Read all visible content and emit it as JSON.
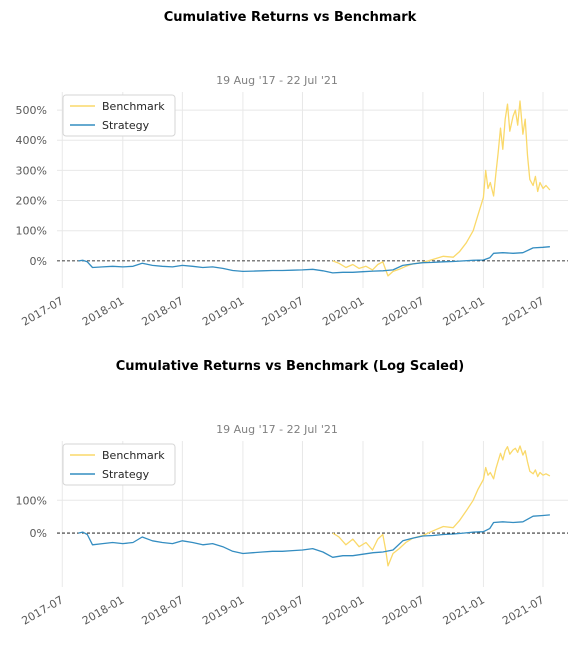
{
  "colors": {
    "benchmark": "#fad96a",
    "strategy": "#348dc1",
    "grid": "#e8e8e8",
    "zero_line": "#000000"
  },
  "chart_data": [
    {
      "type": "line",
      "title": "Cumulative Returns vs Benchmark",
      "subtitle": "19 Aug '17 - 22 Jul '21",
      "x_ticks": [
        "2017-07",
        "2018-01",
        "2018-07",
        "2019-01",
        "2019-07",
        "2020-01",
        "2020-07",
        "2021-01",
        "2021-07"
      ],
      "y_ticks": [
        "0%",
        "100%",
        "200%",
        "300%",
        "400%",
        "500%"
      ],
      "y_tick_values": [
        0,
        100,
        200,
        300,
        400,
        500
      ],
      "ylim": [
        -90,
        560
      ],
      "xlim": [
        "2017-06-15",
        "2021-09-15"
      ],
      "y_scale": "linear",
      "grid": true,
      "legend_position": "top-left",
      "series": [
        {
          "name": "Benchmark",
          "points": [
            [
              "2019-10-01",
              0
            ],
            [
              "2019-10-20",
              -8
            ],
            [
              "2019-11-10",
              -22
            ],
            [
              "2019-12-01",
              -12
            ],
            [
              "2019-12-20",
              -25
            ],
            [
              "2020-01-10",
              -18
            ],
            [
              "2020-01-30",
              -30
            ],
            [
              "2020-02-15",
              -12
            ],
            [
              "2020-03-01",
              -3
            ],
            [
              "2020-03-10",
              -30
            ],
            [
              "2020-03-17",
              -50
            ],
            [
              "2020-04-01",
              -35
            ],
            [
              "2020-04-20",
              -28
            ],
            [
              "2020-05-10",
              -18
            ],
            [
              "2020-06-01",
              -10
            ],
            [
              "2020-07-01",
              -5
            ],
            [
              "2020-08-01",
              5
            ],
            [
              "2020-09-01",
              15
            ],
            [
              "2020-10-01",
              12
            ],
            [
              "2020-10-20",
              30
            ],
            [
              "2020-11-10",
              60
            ],
            [
              "2020-12-01",
              100
            ],
            [
              "2020-12-15",
              150
            ],
            [
              "2021-01-01",
              210
            ],
            [
              "2021-01-08",
              300
            ],
            [
              "2021-01-15",
              240
            ],
            [
              "2021-01-22",
              260
            ],
            [
              "2021-02-01",
              215
            ],
            [
              "2021-02-08",
              290
            ],
            [
              "2021-02-15",
              360
            ],
            [
              "2021-02-22",
              440
            ],
            [
              "2021-03-01",
              370
            ],
            [
              "2021-03-08",
              470
            ],
            [
              "2021-03-15",
              520
            ],
            [
              "2021-03-22",
              430
            ],
            [
              "2021-04-01",
              480
            ],
            [
              "2021-04-08",
              500
            ],
            [
              "2021-04-15",
              450
            ],
            [
              "2021-04-22",
              530
            ],
            [
              "2021-05-01",
              420
            ],
            [
              "2021-05-08",
              470
            ],
            [
              "2021-05-15",
              350
            ],
            [
              "2021-05-22",
              270
            ],
            [
              "2021-06-01",
              250
            ],
            [
              "2021-06-08",
              280
            ],
            [
              "2021-06-15",
              230
            ],
            [
              "2021-06-22",
              260
            ],
            [
              "2021-07-01",
              240
            ],
            [
              "2021-07-10",
              250
            ],
            [
              "2021-07-22",
              235
            ]
          ]
        },
        {
          "name": "Strategy",
          "points": [
            [
              "2017-08-19",
              0
            ],
            [
              "2017-09-01",
              2
            ],
            [
              "2017-09-15",
              -3
            ],
            [
              "2017-10-01",
              -22
            ],
            [
              "2017-11-01",
              -20
            ],
            [
              "2017-12-01",
              -18
            ],
            [
              "2018-01-01",
              -20
            ],
            [
              "2018-02-01",
              -18
            ],
            [
              "2018-03-01",
              -8
            ],
            [
              "2018-04-01",
              -15
            ],
            [
              "2018-05-01",
              -18
            ],
            [
              "2018-06-01",
              -20
            ],
            [
              "2018-07-01",
              -15
            ],
            [
              "2018-08-01",
              -18
            ],
            [
              "2018-09-01",
              -22
            ],
            [
              "2018-10-01",
              -20
            ],
            [
              "2018-11-01",
              -25
            ],
            [
              "2018-12-01",
              -32
            ],
            [
              "2019-01-01",
              -35
            ],
            [
              "2019-02-01",
              -34
            ],
            [
              "2019-03-01",
              -33
            ],
            [
              "2019-04-01",
              -32
            ],
            [
              "2019-05-01",
              -32
            ],
            [
              "2019-06-01",
              -31
            ],
            [
              "2019-07-01",
              -30
            ],
            [
              "2019-08-01",
              -28
            ],
            [
              "2019-09-01",
              -33
            ],
            [
              "2019-10-01",
              -40
            ],
            [
              "2019-11-01",
              -38
            ],
            [
              "2019-12-01",
              -38
            ],
            [
              "2020-01-01",
              -36
            ],
            [
              "2020-02-01",
              -34
            ],
            [
              "2020-03-01",
              -33
            ],
            [
              "2020-04-01",
              -30
            ],
            [
              "2020-05-01",
              -15
            ],
            [
              "2020-06-01",
              -10
            ],
            [
              "2020-07-01",
              -6
            ],
            [
              "2020-08-01",
              -5
            ],
            [
              "2020-09-01",
              -3
            ],
            [
              "2020-10-01",
              -2
            ],
            [
              "2020-11-01",
              0
            ],
            [
              "2020-12-01",
              2
            ],
            [
              "2021-01-01",
              3
            ],
            [
              "2021-01-20",
              10
            ],
            [
              "2021-02-01",
              25
            ],
            [
              "2021-03-01",
              27
            ],
            [
              "2021-04-01",
              25
            ],
            [
              "2021-05-01",
              27
            ],
            [
              "2021-06-01",
              43
            ],
            [
              "2021-07-01",
              45
            ],
            [
              "2021-07-22",
              47
            ]
          ]
        }
      ]
    },
    {
      "type": "line",
      "title": "Cumulative Returns vs Benchmark (Log Scaled)",
      "subtitle": "19 Aug '17 - 22 Jul '21",
      "x_ticks": [
        "2017-07",
        "2018-01",
        "2018-07",
        "2019-01",
        "2019-07",
        "2020-01",
        "2020-07",
        "2021-01",
        "2021-07"
      ],
      "y_ticks": [
        "0%",
        "100%"
      ],
      "y_tick_values": [
        0,
        100
      ],
      "ylim": [
        -68,
        600
      ],
      "xlim": [
        "2017-06-15",
        "2021-09-15"
      ],
      "y_scale": "log",
      "grid": true,
      "legend_position": "top-left",
      "series": [
        {
          "name": "Benchmark",
          "points": [
            [
              "2019-10-01",
              0
            ],
            [
              "2019-10-20",
              -8
            ],
            [
              "2019-11-10",
              -22
            ],
            [
              "2019-12-01",
              -12
            ],
            [
              "2019-12-20",
              -25
            ],
            [
              "2020-01-10",
              -18
            ],
            [
              "2020-01-30",
              -30
            ],
            [
              "2020-02-15",
              -12
            ],
            [
              "2020-03-01",
              -3
            ],
            [
              "2020-03-10",
              -30
            ],
            [
              "2020-03-17",
              -50
            ],
            [
              "2020-04-01",
              -35
            ],
            [
              "2020-04-20",
              -28
            ],
            [
              "2020-05-10",
              -18
            ],
            [
              "2020-06-01",
              -10
            ],
            [
              "2020-07-01",
              -5
            ],
            [
              "2020-08-01",
              5
            ],
            [
              "2020-09-01",
              15
            ],
            [
              "2020-10-01",
              12
            ],
            [
              "2020-10-20",
              30
            ],
            [
              "2020-11-10",
              60
            ],
            [
              "2020-12-01",
              100
            ],
            [
              "2020-12-15",
              150
            ],
            [
              "2021-01-01",
              210
            ],
            [
              "2021-01-08",
              300
            ],
            [
              "2021-01-15",
              240
            ],
            [
              "2021-01-22",
              260
            ],
            [
              "2021-02-01",
              215
            ],
            [
              "2021-02-08",
              290
            ],
            [
              "2021-02-15",
              360
            ],
            [
              "2021-02-22",
              440
            ],
            [
              "2021-03-01",
              370
            ],
            [
              "2021-03-08",
              470
            ],
            [
              "2021-03-15",
              520
            ],
            [
              "2021-03-22",
              430
            ],
            [
              "2021-04-01",
              480
            ],
            [
              "2021-04-08",
              500
            ],
            [
              "2021-04-15",
              450
            ],
            [
              "2021-04-22",
              530
            ],
            [
              "2021-05-01",
              420
            ],
            [
              "2021-05-08",
              470
            ],
            [
              "2021-05-15",
              350
            ],
            [
              "2021-05-22",
              270
            ],
            [
              "2021-06-01",
              250
            ],
            [
              "2021-06-08",
              280
            ],
            [
              "2021-06-15",
              230
            ],
            [
              "2021-06-22",
              260
            ],
            [
              "2021-07-01",
              240
            ],
            [
              "2021-07-10",
              250
            ],
            [
              "2021-07-22",
              235
            ]
          ]
        },
        {
          "name": "Strategy",
          "points": [
            [
              "2017-08-19",
              0
            ],
            [
              "2017-09-01",
              2
            ],
            [
              "2017-09-15",
              -3
            ],
            [
              "2017-10-01",
              -22
            ],
            [
              "2017-11-01",
              -20
            ],
            [
              "2017-12-01",
              -18
            ],
            [
              "2018-01-01",
              -20
            ],
            [
              "2018-02-01",
              -18
            ],
            [
              "2018-03-01",
              -8
            ],
            [
              "2018-04-01",
              -15
            ],
            [
              "2018-05-01",
              -18
            ],
            [
              "2018-06-01",
              -20
            ],
            [
              "2018-07-01",
              -15
            ],
            [
              "2018-08-01",
              -18
            ],
            [
              "2018-09-01",
              -22
            ],
            [
              "2018-10-01",
              -20
            ],
            [
              "2018-11-01",
              -25
            ],
            [
              "2018-12-01",
              -32
            ],
            [
              "2019-01-01",
              -35
            ],
            [
              "2019-02-01",
              -34
            ],
            [
              "2019-03-01",
              -33
            ],
            [
              "2019-04-01",
              -32
            ],
            [
              "2019-05-01",
              -32
            ],
            [
              "2019-06-01",
              -31
            ],
            [
              "2019-07-01",
              -30
            ],
            [
              "2019-08-01",
              -28
            ],
            [
              "2019-09-01",
              -33
            ],
            [
              "2019-10-01",
              -40
            ],
            [
              "2019-11-01",
              -38
            ],
            [
              "2019-12-01",
              -38
            ],
            [
              "2020-01-01",
              -36
            ],
            [
              "2020-02-01",
              -34
            ],
            [
              "2020-03-01",
              -33
            ],
            [
              "2020-04-01",
              -30
            ],
            [
              "2020-05-01",
              -15
            ],
            [
              "2020-06-01",
              -10
            ],
            [
              "2020-07-01",
              -6
            ],
            [
              "2020-08-01",
              -5
            ],
            [
              "2020-09-01",
              -3
            ],
            [
              "2020-10-01",
              -2
            ],
            [
              "2020-11-01",
              0
            ],
            [
              "2020-12-01",
              2
            ],
            [
              "2021-01-01",
              3
            ],
            [
              "2021-01-20",
              10
            ],
            [
              "2021-02-01",
              25
            ],
            [
              "2021-03-01",
              27
            ],
            [
              "2021-04-01",
              25
            ],
            [
              "2021-05-01",
              27
            ],
            [
              "2021-06-01",
              43
            ],
            [
              "2021-07-01",
              45
            ],
            [
              "2021-07-22",
              47
            ]
          ]
        }
      ]
    }
  ]
}
